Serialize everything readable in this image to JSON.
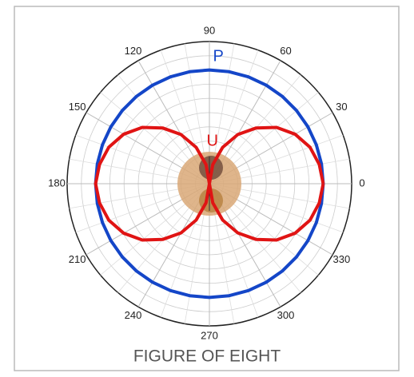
{
  "chart_data": {
    "type": "polar",
    "title": "FIGURE OF EIGHT",
    "angle_ticks": [
      0,
      30,
      60,
      90,
      120,
      150,
      180,
      210,
      240,
      270,
      300,
      330
    ],
    "rlim": [
      0,
      1.25
    ],
    "x": [
      0,
      10,
      20,
      30,
      40,
      50,
      60,
      70,
      80,
      90,
      100,
      110,
      120,
      130,
      140,
      150,
      160,
      170,
      180,
      190,
      200,
      210,
      220,
      230,
      240,
      250,
      260,
      270,
      280,
      290,
      300,
      310,
      320,
      330,
      340,
      350,
      360
    ],
    "series": [
      {
        "name": "P",
        "color": "#1446c8",
        "values": [
          1,
          1,
          1,
          1,
          1,
          1,
          1,
          1,
          1,
          1,
          1,
          1,
          1,
          1,
          1,
          1,
          1,
          1,
          1,
          1,
          1,
          1,
          1,
          1,
          1,
          1,
          1,
          1,
          1,
          1,
          1,
          1,
          1,
          1,
          1,
          1,
          1
        ]
      },
      {
        "name": "U",
        "color": "#e01414",
        "values": [
          1,
          0.98,
          0.94,
          0.87,
          0.77,
          0.64,
          0.5,
          0.34,
          0.17,
          0,
          0.17,
          0.34,
          0.5,
          0.64,
          0.77,
          0.87,
          0.94,
          0.98,
          1,
          0.98,
          0.94,
          0.87,
          0.77,
          0.64,
          0.5,
          0.34,
          0.17,
          0,
          0.17,
          0.34,
          0.5,
          0.64,
          0.77,
          0.87,
          0.94,
          0.98,
          1
        ]
      }
    ]
  }
}
